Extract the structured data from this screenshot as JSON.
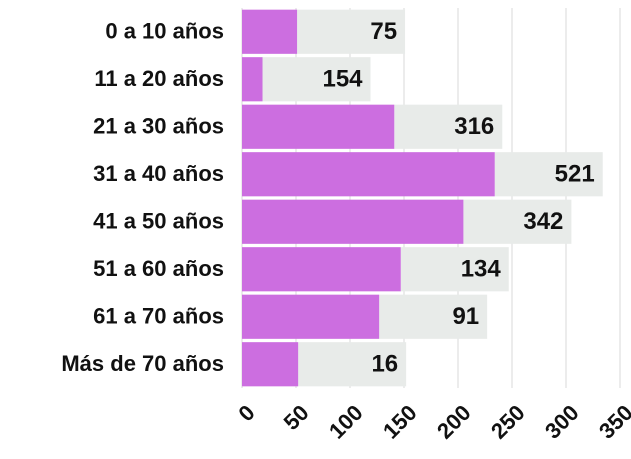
{
  "chart_data": {
    "type": "bar",
    "orientation": "horizontal",
    "categories": [
      "0 a 10 años",
      "11 a 20 años",
      "21 a 30 años",
      "31 a 40 años",
      "41 a 50 años",
      "51 a 60 años",
      "61 a 70 años",
      "Más de 70 años"
    ],
    "values": [
      51,
      19,
      141,
      234,
      205,
      147,
      127,
      52
    ],
    "labels": [
      75,
      154,
      316,
      521,
      342,
      134,
      91,
      16
    ],
    "color": "#cc6ee0",
    "label_background": "#e8ebe9",
    "xlim": [
      0,
      350
    ],
    "xticks": [
      0,
      50,
      100,
      150,
      200,
      250,
      300,
      350
    ],
    "grid": true
  }
}
